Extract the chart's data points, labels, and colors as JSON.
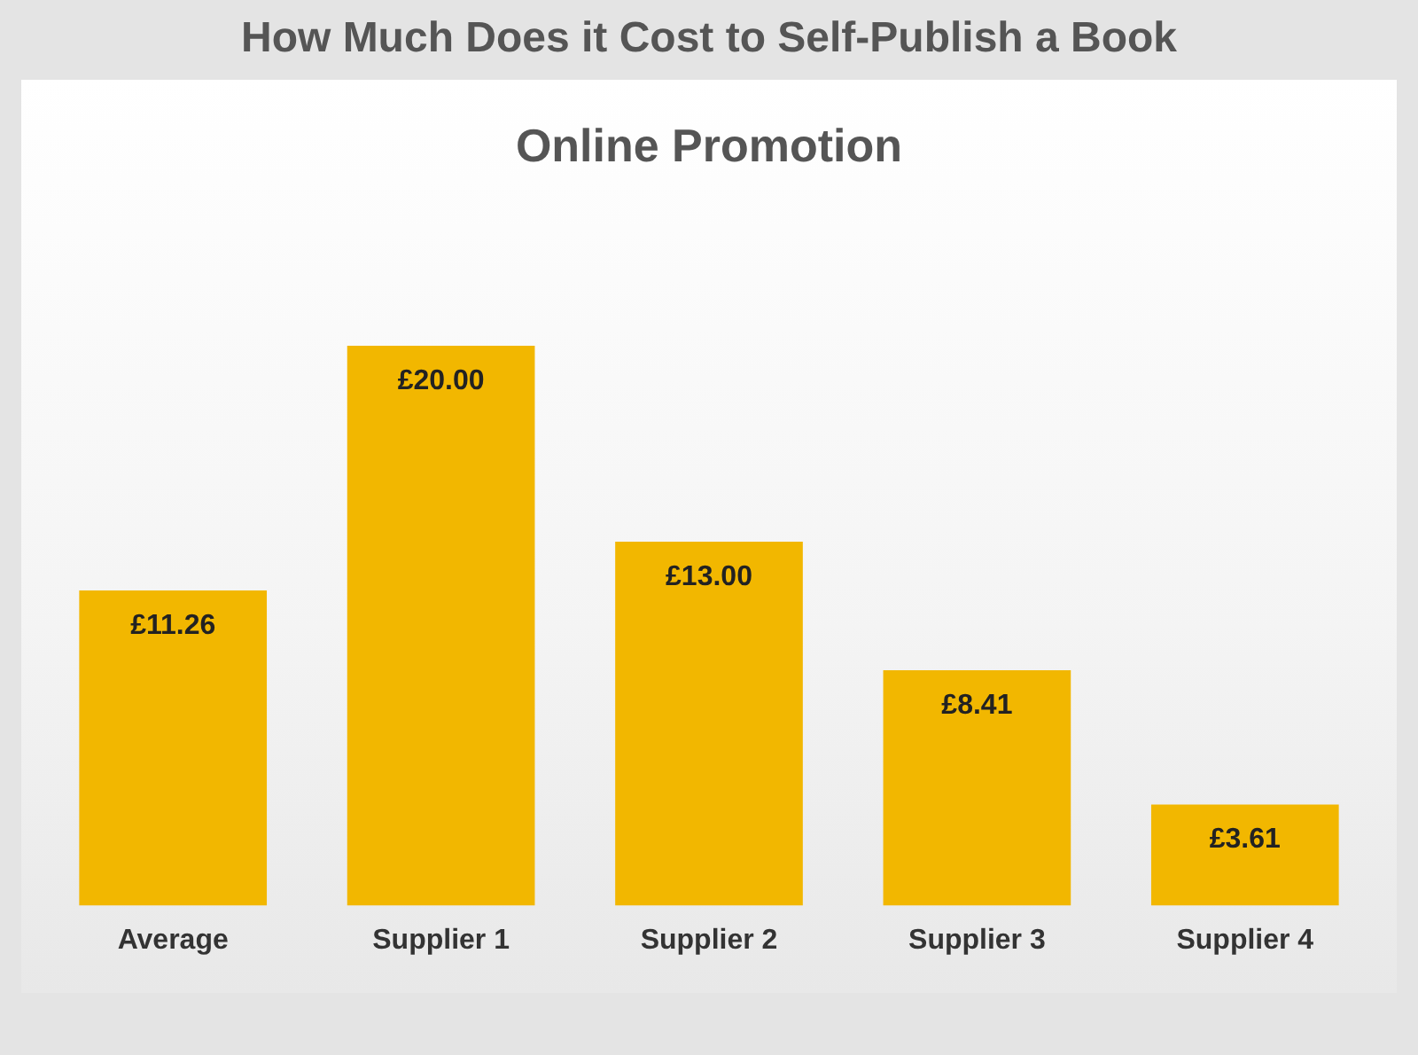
{
  "chart_data": {
    "type": "bar",
    "title": "How Much Does it Cost to Self-Publish a Book",
    "subtitle": "Online Promotion",
    "categories": [
      "Average",
      "Supplier 1",
      "Supplier 2",
      "Supplier 3",
      "Supplier 4"
    ],
    "values": [
      11.26,
      20.0,
      13.0,
      8.41,
      3.61
    ],
    "value_labels": [
      "£11.26",
      "£20.00",
      "£13.00",
      "£8.41",
      "£3.61"
    ],
    "color": "#f2b700",
    "grid": false,
    "legend": false
  }
}
